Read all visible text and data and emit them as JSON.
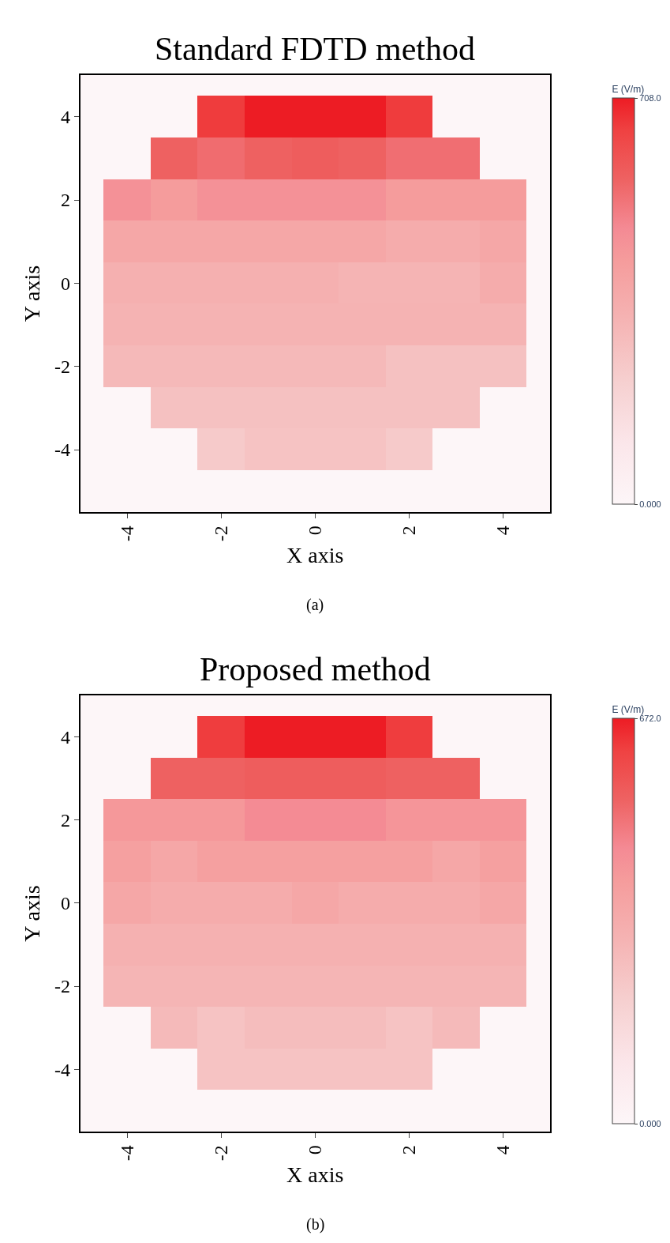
{
  "chart_data": [
    {
      "type": "heatmap",
      "title": "Standard FDTD method",
      "xlabel": "X axis",
      "ylabel": "Y axis",
      "clabel": "E (V/m)",
      "annotations": [
        "(a)"
      ],
      "x": [
        -5,
        -4,
        -3,
        -2,
        -1,
        0,
        1,
        2,
        3,
        4,
        5
      ],
      "y": [
        5,
        4,
        3,
        2,
        1,
        0,
        -1,
        -2,
        -3,
        -4,
        -5
      ],
      "cells": [
        [
          0,
          0,
          0,
          0,
          0,
          0,
          0,
          0,
          0,
          0,
          0
        ],
        [
          0,
          0,
          0,
          660,
          708,
          708,
          708,
          660,
          0,
          0,
          0
        ],
        [
          0,
          0,
          570,
          545,
          570,
          580,
          570,
          540,
          540,
          0,
          0
        ],
        [
          0,
          460,
          425,
          460,
          460,
          460,
          460,
          425,
          425,
          425,
          0
        ],
        [
          0,
          375,
          375,
          375,
          375,
          375,
          375,
          355,
          355,
          375,
          0
        ],
        [
          0,
          335,
          335,
          335,
          335,
          335,
          320,
          320,
          320,
          355,
          0
        ],
        [
          0,
          325,
          325,
          325,
          325,
          325,
          325,
          325,
          325,
          325,
          0
        ],
        [
          0,
          300,
          300,
          300,
          300,
          300,
          300,
          270,
          270,
          270,
          0
        ],
        [
          0,
          0,
          270,
          270,
          270,
          270,
          270,
          270,
          270,
          0,
          0
        ],
        [
          0,
          0,
          0,
          235,
          260,
          260,
          260,
          235,
          0,
          0,
          0
        ],
        [
          0,
          0,
          0,
          0,
          0,
          0,
          0,
          0,
          0,
          0,
          0
        ]
      ],
      "xlim": [
        -5,
        5
      ],
      "ylim": [
        -5.5,
        5
      ],
      "xticks": [
        -4,
        -2,
        0,
        2,
        4
      ],
      "yticks": [
        -4,
        -2,
        0,
        2,
        4
      ],
      "clim": [
        0,
        708
      ],
      "cticks": [
        {
          "value": 0,
          "label": "0.000"
        },
        {
          "value": 708,
          "label": "708.0"
        }
      ]
    },
    {
      "type": "heatmap",
      "title": "Proposed method",
      "xlabel": "X axis",
      "ylabel": "Y axis",
      "clabel": "E (V/m)",
      "annotations": [
        "(b)"
      ],
      "x": [
        -5,
        -4,
        -3,
        -2,
        -1,
        0,
        1,
        2,
        3,
        4,
        5
      ],
      "y": [
        5,
        4,
        3,
        2,
        1,
        0,
        -1,
        -2,
        -3,
        -4,
        -5
      ],
      "cells": [
        [
          0,
          0,
          0,
          0,
          0,
          0,
          0,
          0,
          0,
          0,
          0
        ],
        [
          0,
          0,
          0,
          625,
          672,
          672,
          672,
          625,
          0,
          0,
          0
        ],
        [
          0,
          0,
          540,
          540,
          550,
          550,
          550,
          540,
          540,
          0,
          0
        ],
        [
          0,
          415,
          415,
          415,
          455,
          455,
          455,
          425,
          425,
          425,
          0
        ],
        [
          0,
          385,
          355,
          385,
          385,
          385,
          385,
          385,
          355,
          385,
          0
        ],
        [
          0,
          355,
          335,
          335,
          335,
          355,
          335,
          335,
          335,
          355,
          0
        ],
        [
          0,
          315,
          315,
          315,
          315,
          315,
          315,
          315,
          315,
          315,
          0
        ],
        [
          0,
          300,
          300,
          300,
          300,
          300,
          300,
          300,
          300,
          300,
          0
        ],
        [
          0,
          0,
          280,
          250,
          270,
          270,
          270,
          250,
          280,
          0,
          0
        ],
        [
          0,
          0,
          0,
          250,
          250,
          250,
          250,
          250,
          0,
          0,
          0
        ],
        [
          0,
          0,
          0,
          0,
          0,
          0,
          0,
          0,
          0,
          0,
          0
        ]
      ],
      "xlim": [
        -5,
        5
      ],
      "ylim": [
        -5.5,
        5
      ],
      "xticks": [
        -4,
        -2,
        0,
        2,
        4
      ],
      "yticks": [
        -4,
        -2,
        0,
        2,
        4
      ],
      "clim": [
        0,
        672
      ],
      "cticks": [
        {
          "value": 0,
          "label": "0.000"
        },
        {
          "value": 672,
          "label": "672.0"
        }
      ]
    }
  ]
}
